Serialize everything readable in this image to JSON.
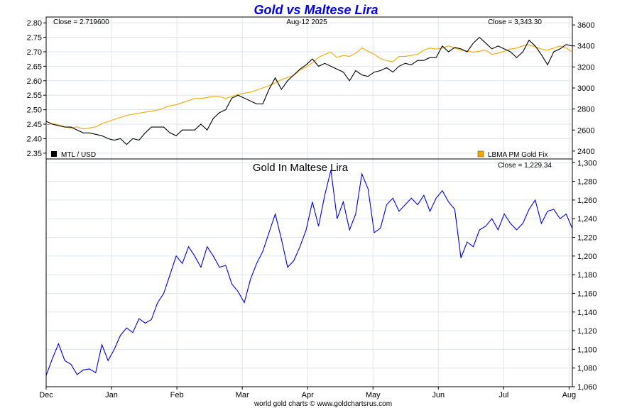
{
  "title": "Gold vs Maltese Lira",
  "footer": "world gold charts © www.goldchartsrus.com",
  "top_panel": {
    "close_left": "Close = 2.719600",
    "date": "Aug-12  2025",
    "close_right": "Close = 3,343.30",
    "legend_left": "MTL / USD",
    "legend_right": "LBMA PM Gold Fix"
  },
  "bottom_panel": {
    "subtitle": "Gold In Maltese Lira",
    "close_right": "Close = 1,229.34"
  },
  "colors": {
    "mtl": "#000000",
    "gold": "#f0a800",
    "gold_mtl": "#0000dd",
    "title": "#0000ee",
    "grid": "#dde6ee"
  },
  "chart_data": [
    {
      "type": "line",
      "panel": "top",
      "x_ticks": [
        "Dec",
        "Jan",
        "Feb",
        "Mar",
        "Apr",
        "May",
        "Jun",
        "Jul",
        "Aug"
      ],
      "y_left_ticks": [
        "2.80",
        "2.75",
        "2.70",
        "2.65",
        "2.60",
        "2.55",
        "2.50",
        "2.45",
        "2.40",
        "2.35"
      ],
      "y_right_ticks": [
        "3600",
        "3400",
        "3200",
        "3000",
        "2800",
        "2600",
        "2400"
      ],
      "ylim_left": [
        2.33,
        2.82
      ],
      "ylim_right": [
        2325,
        3675
      ],
      "series": [
        {
          "name": "MTL / USD",
          "axis": "left",
          "values": [
            2.46,
            2.45,
            2.445,
            2.44,
            2.44,
            2.43,
            2.42,
            2.42,
            2.415,
            2.41,
            2.4,
            2.395,
            2.4,
            2.38,
            2.4,
            2.395,
            2.42,
            2.44,
            2.44,
            2.44,
            2.42,
            2.41,
            2.43,
            2.43,
            2.43,
            2.45,
            2.43,
            2.47,
            2.49,
            2.5,
            2.54,
            2.55,
            2.54,
            2.53,
            2.52,
            2.52,
            2.57,
            2.61,
            2.57,
            2.6,
            2.62,
            2.64,
            2.655,
            2.675,
            2.65,
            2.66,
            2.65,
            2.64,
            2.63,
            2.6,
            2.635,
            2.62,
            2.615,
            2.63,
            2.635,
            2.645,
            2.63,
            2.65,
            2.66,
            2.655,
            2.67,
            2.67,
            2.68,
            2.68,
            2.72,
            2.7,
            2.715,
            2.71,
            2.7,
            2.73,
            2.75,
            2.73,
            2.71,
            2.72,
            2.71,
            2.7,
            2.68,
            2.7,
            2.74,
            2.72,
            2.69,
            2.655,
            2.7,
            2.71,
            2.725,
            2.72
          ]
        },
        {
          "name": "LBMA PM Gold Fix",
          "axis": "right",
          "values": [
            2650,
            2660,
            2650,
            2630,
            2620,
            2630,
            2610,
            2620,
            2630,
            2660,
            2680,
            2700,
            2720,
            2740,
            2750,
            2760,
            2770,
            2780,
            2790,
            2810,
            2830,
            2840,
            2860,
            2880,
            2900,
            2900,
            2910,
            2920,
            2920,
            2900,
            2920,
            2940,
            2950,
            2960,
            2980,
            3000,
            3020,
            3050,
            3080,
            3100,
            3120,
            3170,
            3200,
            3240,
            3290,
            3320,
            3340,
            3290,
            3310,
            3300,
            3330,
            3380,
            3350,
            3320,
            3280,
            3260,
            3250,
            3300,
            3300,
            3310,
            3320,
            3360,
            3380,
            3370,
            3380,
            3400,
            3380,
            3360,
            3350,
            3340,
            3350,
            3360,
            3320,
            3330,
            3350,
            3370,
            3380,
            3400,
            3410,
            3390,
            3370,
            3360,
            3380,
            3400,
            3380,
            3343
          ]
        }
      ]
    },
    {
      "type": "line",
      "panel": "bottom",
      "title": "Gold In Maltese Lira",
      "x_ticks": [
        "Dec",
        "Jan",
        "Feb",
        "Mar",
        "Apr",
        "May",
        "Jun",
        "Jul",
        "Aug"
      ],
      "y_ticks": [
        "1,300",
        "1,280",
        "1,260",
        "1,240",
        "1,220",
        "1,200",
        "1,180",
        "1,160",
        "1,140",
        "1,120",
        "1,100",
        "1,080",
        "1,060"
      ],
      "ylim": [
        1060,
        1304
      ],
      "series": [
        {
          "name": "Gold In Maltese Lira",
          "values": [
            1072,
            1090,
            1106,
            1088,
            1084,
            1073,
            1078,
            1079,
            1075,
            1105,
            1088,
            1100,
            1115,
            1123,
            1118,
            1133,
            1128,
            1132,
            1150,
            1160,
            1180,
            1200,
            1192,
            1210,
            1200,
            1188,
            1210,
            1200,
            1188,
            1190,
            1170,
            1162,
            1150,
            1175,
            1192,
            1205,
            1225,
            1245,
            1218,
            1188,
            1195,
            1210,
            1228,
            1258,
            1232,
            1265,
            1292,
            1240,
            1258,
            1228,
            1245,
            1288,
            1272,
            1225,
            1230,
            1255,
            1262,
            1248,
            1255,
            1262,
            1255,
            1265,
            1248,
            1262,
            1270,
            1258,
            1250,
            1198,
            1215,
            1210,
            1228,
            1232,
            1240,
            1228,
            1245,
            1235,
            1228,
            1235,
            1250,
            1260,
            1235,
            1248,
            1250,
            1240,
            1245,
            1229.34
          ]
        }
      ]
    }
  ]
}
